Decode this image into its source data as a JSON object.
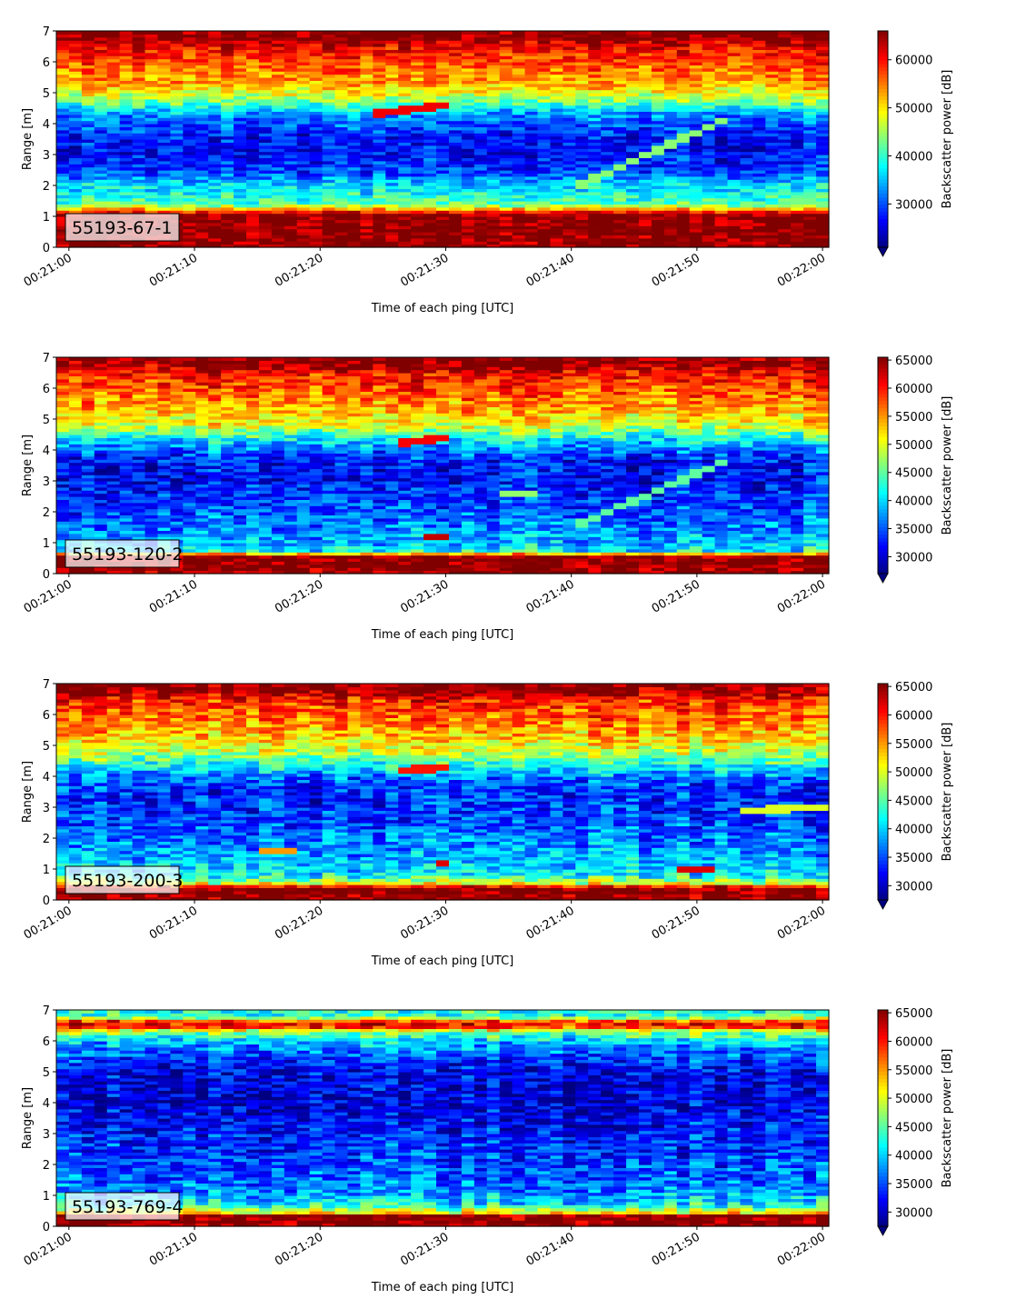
{
  "chart_data": [
    {
      "type": "heatmap",
      "label": "55193-67-1",
      "xlabel": "Time of each ping [UTC]",
      "ylabel": "Range [m]",
      "x_ticks": [
        "00:21:00",
        "00:21:10",
        "00:21:20",
        "00:21:30",
        "00:21:40",
        "00:21:50",
        "00:22:00"
      ],
      "y_ticks": [
        "0",
        "1",
        "2",
        "3",
        "4",
        "5",
        "6",
        "7"
      ],
      "xlim": [
        "00:20:59",
        "00:22:00"
      ],
      "ylim": [
        0,
        7
      ],
      "colorbar_label": "Backscatter power [dB]",
      "colorbar_ticks": [
        30000,
        40000,
        50000,
        60000
      ],
      "clim": [
        21000,
        66000
      ],
      "colormap": "jet",
      "range_profile": [
        [
          0.0,
          66000
        ],
        [
          0.2,
          66000
        ],
        [
          1.05,
          66000
        ],
        [
          1.2,
          56000
        ],
        [
          1.4,
          42000
        ],
        [
          1.8,
          38000
        ],
        [
          2.1,
          36000
        ],
        [
          2.4,
          30000
        ],
        [
          3.0,
          27000
        ],
        [
          3.6,
          27500
        ],
        [
          4.0,
          31000
        ],
        [
          4.3,
          33000
        ],
        [
          4.8,
          45000
        ],
        [
          5.3,
          53000
        ],
        [
          5.8,
          56000
        ],
        [
          6.5,
          61000
        ],
        [
          6.8,
          66000
        ],
        [
          7.0,
          66000
        ]
      ],
      "features": [
        {
          "t_start": 24,
          "t_end": 30,
          "range_start": 4.3,
          "range_end": 4.6,
          "level": 61000
        },
        {
          "t_start": 40,
          "t_end": 52,
          "range_start": 1.9,
          "range_end": 4.1,
          "level": 44000
        }
      ]
    },
    {
      "type": "heatmap",
      "label": "55193-120-2",
      "xlabel": "Time of each ping [UTC]",
      "ylabel": "Range [m]",
      "x_ticks": [
        "00:21:00",
        "00:21:10",
        "00:21:20",
        "00:21:30",
        "00:21:40",
        "00:21:50",
        "00:22:00"
      ],
      "y_ticks": [
        "0",
        "1",
        "2",
        "3",
        "4",
        "5",
        "6",
        "7"
      ],
      "xlim": [
        "00:20:59",
        "00:22:00"
      ],
      "ylim": [
        0,
        7
      ],
      "colorbar_label": "Backscatter power [dB]",
      "colorbar_ticks": [
        30000,
        35000,
        40000,
        45000,
        50000,
        55000,
        60000,
        65000
      ],
      "clim": [
        27000,
        65500
      ],
      "colormap": "jet",
      "range_profile": [
        [
          0.0,
          65500
        ],
        [
          0.1,
          65500
        ],
        [
          0.6,
          65500
        ],
        [
          0.7,
          42000
        ],
        [
          1.0,
          39000
        ],
        [
          1.5,
          37000
        ],
        [
          2.0,
          35000
        ],
        [
          2.5,
          34000
        ],
        [
          3.0,
          32000
        ],
        [
          3.6,
          32500
        ],
        [
          4.0,
          36000
        ],
        [
          4.4,
          42000
        ],
        [
          4.8,
          50000
        ],
        [
          5.3,
          54000
        ],
        [
          5.8,
          57000
        ],
        [
          6.5,
          61000
        ],
        [
          6.8,
          65500
        ],
        [
          7.0,
          65500
        ]
      ],
      "features": [
        {
          "t_start": 26,
          "t_end": 30,
          "range_start": 4.2,
          "range_end": 4.4,
          "level": 61000
        },
        {
          "t_start": 40,
          "t_end": 52,
          "range_start": 1.5,
          "range_end": 3.6,
          "level": 45000
        },
        {
          "t_start": 28,
          "t_end": 30,
          "range_start": 1.2,
          "range_end": 1.2,
          "level": 63000
        },
        {
          "t_start": 34,
          "t_end": 37,
          "range_start": 2.6,
          "range_end": 2.6,
          "level": 47000
        }
      ]
    },
    {
      "type": "heatmap",
      "label": "55193-200-3",
      "xlabel": "Time of each ping [UTC]",
      "ylabel": "Range [m]",
      "x_ticks": [
        "00:21:00",
        "00:21:10",
        "00:21:20",
        "00:21:30",
        "00:21:40",
        "00:21:50",
        "00:22:00"
      ],
      "y_ticks": [
        "0",
        "1",
        "2",
        "3",
        "4",
        "5",
        "6",
        "7"
      ],
      "xlim": [
        "00:20:59",
        "00:22:00"
      ],
      "ylim": [
        0,
        7
      ],
      "colorbar_label": "Backscatter power [dB]",
      "colorbar_ticks": [
        30000,
        35000,
        40000,
        45000,
        50000,
        55000,
        60000,
        65000
      ],
      "clim": [
        27500,
        65500
      ],
      "colormap": "jet",
      "range_profile": [
        [
          0.0,
          65500
        ],
        [
          0.15,
          65500
        ],
        [
          0.4,
          65500
        ],
        [
          0.55,
          50000
        ],
        [
          0.8,
          42000
        ],
        [
          1.5,
          38000
        ],
        [
          2.0,
          37000
        ],
        [
          2.5,
          35000
        ],
        [
          3.0,
          34000
        ],
        [
          3.6,
          34000
        ],
        [
          4.0,
          37000
        ],
        [
          4.4,
          43000
        ],
        [
          4.8,
          49000
        ],
        [
          5.3,
          53000
        ],
        [
          5.8,
          56000
        ],
        [
          6.5,
          60000
        ],
        [
          6.8,
          65500
        ],
        [
          7.0,
          65500
        ]
      ],
      "features": [
        {
          "t_start": 26,
          "t_end": 30,
          "range_start": 4.2,
          "range_end": 4.3,
          "level": 60000
        },
        {
          "t_start": 15,
          "t_end": 18,
          "range_start": 1.6,
          "range_end": 1.6,
          "level": 55000
        },
        {
          "t_start": 29,
          "t_end": 30,
          "range_start": 1.2,
          "range_end": 1.2,
          "level": 62000
        },
        {
          "t_start": 48,
          "t_end": 51,
          "range_start": 1.0,
          "range_end": 1.0,
          "level": 62000
        },
        {
          "t_start": 53,
          "t_end": 60,
          "range_start": 2.9,
          "range_end": 3.0,
          "level": 50000
        }
      ]
    },
    {
      "type": "heatmap",
      "label": "55193-769-4",
      "xlabel": "Time of each ping [UTC]",
      "ylabel": "Range [m]",
      "x_ticks": [
        "00:21:00",
        "00:21:10",
        "00:21:20",
        "00:21:30",
        "00:21:40",
        "00:21:50",
        "00:22:00"
      ],
      "y_ticks": [
        "0",
        "1",
        "2",
        "3",
        "4",
        "5",
        "6",
        "7"
      ],
      "xlim": [
        "00:20:59",
        "00:22:00"
      ],
      "ylim": [
        0,
        7
      ],
      "colorbar_label": "Backscatter power [dB]",
      "colorbar_ticks": [
        30000,
        35000,
        40000,
        45000,
        50000,
        55000,
        60000,
        65000
      ],
      "clim": [
        27500,
        65500
      ],
      "colormap": "jet",
      "range_profile": [
        [
          0.0,
          65500
        ],
        [
          0.15,
          65500
        ],
        [
          0.35,
          65500
        ],
        [
          0.45,
          52000
        ],
        [
          0.7,
          42000
        ],
        [
          1.2,
          37000
        ],
        [
          2.0,
          35000
        ],
        [
          3.0,
          33000
        ],
        [
          4.0,
          31000
        ],
        [
          5.0,
          31500
        ],
        [
          5.6,
          36000
        ],
        [
          6.0,
          40000
        ],
        [
          6.3,
          47000
        ],
        [
          6.5,
          63000
        ],
        [
          6.65,
          58000
        ],
        [
          6.8,
          43000
        ],
        [
          7.0,
          43000
        ]
      ],
      "features": []
    }
  ]
}
